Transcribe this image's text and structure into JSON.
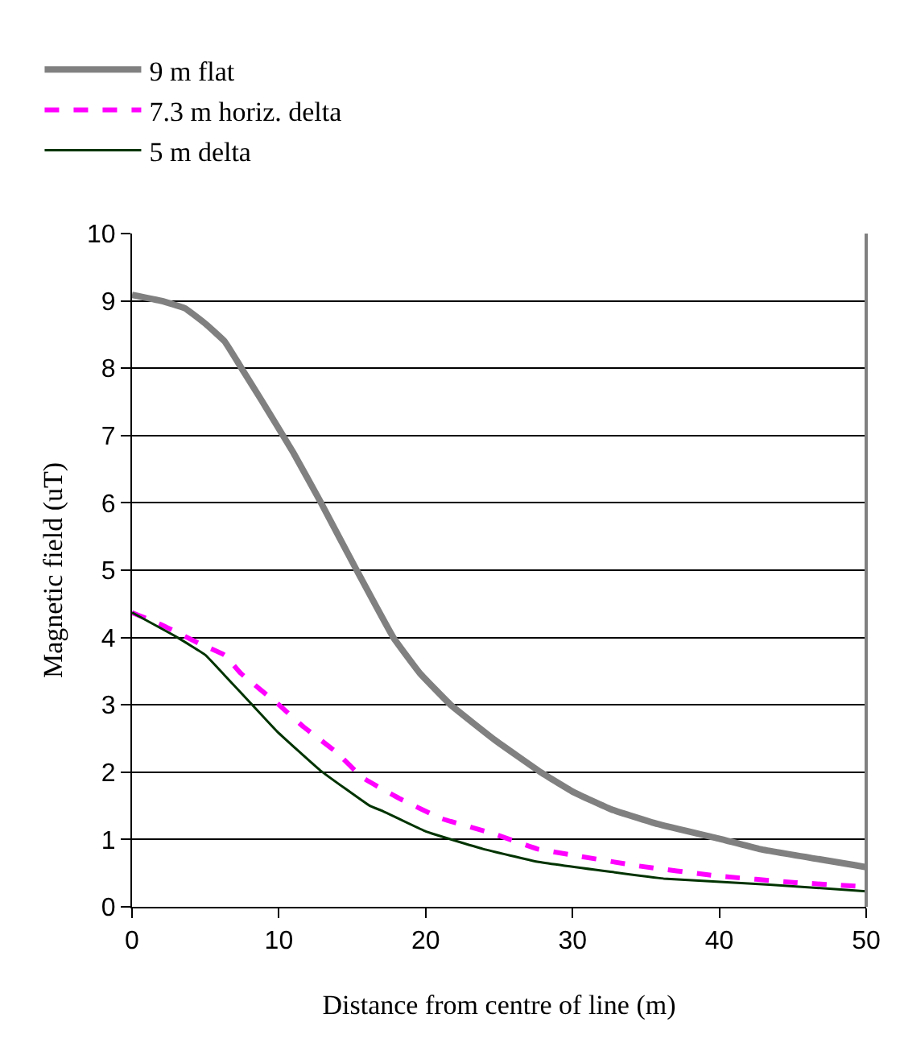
{
  "chart_data": {
    "type": "line",
    "xlabel": "Distance from centre of line (m)",
    "ylabel": "Magnetic field (uT)",
    "xlim": [
      0,
      50
    ],
    "xticks": [
      0,
      10,
      20,
      30,
      40,
      50
    ],
    "ylim": [
      0,
      10
    ],
    "yticks": [
      0,
      1,
      2,
      3,
      4,
      5,
      6,
      7,
      8,
      9,
      10
    ],
    "grid": "y",
    "legend": "top",
    "marker": "none",
    "series": [
      {
        "name": "9 m flat",
        "color": "#808080",
        "line_style": "solid",
        "x": [
          0,
          2,
          3.6,
          5,
          6.3,
          7.4,
          8.8,
          11,
          12.8,
          15.3,
          17.8,
          19.6,
          21.7,
          24.7,
          27.9,
          30.1,
          32.6,
          35.8,
          40.2,
          42.7,
          50
        ],
        "values": [
          9.09,
          9.0,
          8.89,
          8.66,
          8.4,
          8.02,
          7.53,
          6.74,
          6.03,
          5.0,
          4.0,
          3.47,
          3.0,
          2.48,
          1.99,
          1.7,
          1.45,
          1.23,
          1.0,
          0.86,
          0.59
        ]
      },
      {
        "name": "7.3 m horiz. delta",
        "color": "#ff00ff",
        "line_style": "dashed",
        "x": [
          0,
          2,
          4.5,
          6.3,
          7.4,
          9.9,
          11.7,
          13.9,
          15.7,
          18.2,
          21.1,
          24.7,
          27.6,
          29.7,
          34.4,
          39.8,
          45.2,
          50
        ],
        "values": [
          4.37,
          4.19,
          3.92,
          3.74,
          3.47,
          3.02,
          2.67,
          2.3,
          1.92,
          1.61,
          1.31,
          1.08,
          0.86,
          0.78,
          0.61,
          0.46,
          0.36,
          0.3
        ]
      },
      {
        "name": "5 m delta",
        "color": "#003300",
        "line_style": "solid",
        "x": [
          0,
          3.1,
          5,
          6.3,
          8.1,
          9.9,
          12.8,
          16.2,
          17.1,
          20,
          23.9,
          27.6,
          32.6,
          36.2,
          43.4,
          50
        ],
        "values": [
          4.37,
          4.0,
          3.74,
          3.44,
          3.02,
          2.6,
          2.03,
          1.5,
          1.42,
          1.12,
          0.86,
          0.67,
          0.52,
          0.42,
          0.33,
          0.23
        ]
      }
    ]
  }
}
